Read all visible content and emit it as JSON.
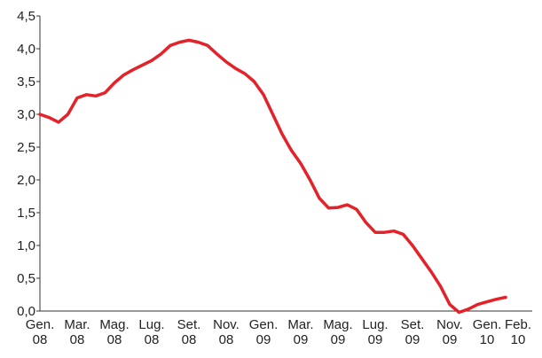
{
  "chart_data": {
    "type": "line",
    "categories": [
      [
        "Gen.",
        "08"
      ],
      null,
      null,
      null,
      [
        "Mar.",
        "08"
      ],
      null,
      null,
      null,
      [
        "Mag.",
        "08"
      ],
      null,
      null,
      null,
      [
        "Lug.",
        "08"
      ],
      null,
      null,
      null,
      [
        "Set.",
        "08"
      ],
      null,
      null,
      null,
      [
        "Nov.",
        "08"
      ],
      null,
      null,
      null,
      [
        "Gen.",
        "09"
      ],
      null,
      null,
      null,
      [
        "Mar.",
        "09"
      ],
      null,
      null,
      null,
      [
        "Mag.",
        "09"
      ],
      null,
      null,
      null,
      [
        "Lug.",
        "09"
      ],
      null,
      null,
      null,
      [
        "Set.",
        "09"
      ],
      null,
      null,
      null,
      [
        "Nov.",
        "09"
      ],
      null,
      null,
      null,
      [
        "Gen.",
        "10"
      ],
      null,
      [
        "Feb.",
        "10"
      ]
    ],
    "series": [
      {
        "color": "#e3222a",
        "values": [
          3.0,
          2.95,
          2.88,
          3.0,
          3.25,
          3.3,
          3.28,
          3.33,
          3.48,
          3.6,
          3.68,
          3.75,
          3.82,
          3.92,
          4.05,
          4.1,
          4.13,
          4.1,
          4.05,
          3.92,
          3.8,
          3.7,
          3.62,
          3.5,
          3.3,
          3.0,
          2.7,
          2.45,
          2.25,
          2.0,
          1.72,
          1.57,
          1.58,
          1.62,
          1.55,
          1.35,
          1.2,
          1.2,
          1.22,
          1.17,
          1.0,
          0.8,
          0.6,
          0.38,
          0.1,
          -0.02,
          0.03,
          0.1,
          0.14,
          0.18,
          0.21
        ]
      }
    ],
    "ylim": [
      0,
      4.5
    ],
    "yticks": [
      {
        "value": 0,
        "label": "0,0"
      },
      {
        "value": 0.5,
        "label": "0,5"
      },
      {
        "value": 1,
        "label": "1,0"
      },
      {
        "value": 1.5,
        "label": "1,5"
      },
      {
        "value": 2,
        "label": "2,0"
      },
      {
        "value": 2.5,
        "label": "2,5"
      },
      {
        "value": 3,
        "label": "3,0"
      },
      {
        "value": 3.5,
        "label": "3,5"
      },
      {
        "value": 4,
        "label": "4,0"
      },
      {
        "value": 4.5,
        "label": "4,5"
      }
    ],
    "grid": false
  }
}
